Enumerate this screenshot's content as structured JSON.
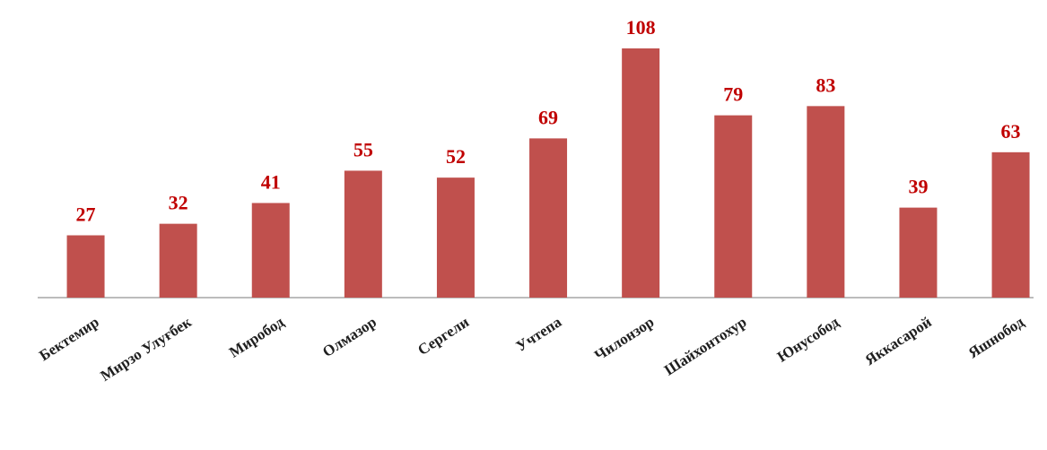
{
  "chart_data": {
    "type": "bar",
    "categories": [
      "Бектемир",
      "Мирзо Улуғбек",
      "Миробод",
      "Олмазор",
      "Сергели",
      "Учтепа",
      "Чилонзор",
      "Шайхонтохур",
      "Юнусобод",
      "Яккасарой",
      "Яшнобод"
    ],
    "values": [
      27,
      32,
      41,
      55,
      52,
      69,
      108,
      79,
      83,
      39,
      63
    ],
    "color": "#c0504d",
    "label_color": "#c00000"
  }
}
